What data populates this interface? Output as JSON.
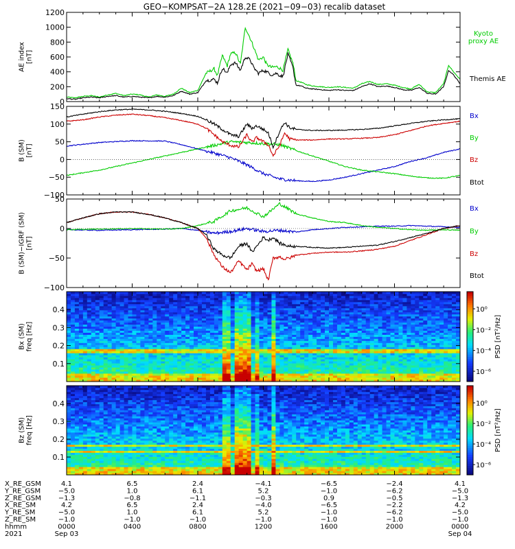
{
  "chart_data": [
    {
      "type": "line",
      "panel": "ae",
      "title": "GEO−KOMPSAT−2A 128.2E (2021−09−03) recalib dataset",
      "ylabel": "AE index\n[nT]",
      "ylim": [
        0,
        1200
      ],
      "yticks": [
        0,
        200,
        400,
        600,
        800,
        1000,
        1200
      ],
      "xlim": [
        0,
        24
      ],
      "series": [
        {
          "name": "Kyoto\nproxy AE",
          "color": "#00cc00",
          "x": [
            0,
            0.5,
            1,
            1.5,
            2,
            2.5,
            3,
            3.5,
            4,
            4.5,
            5,
            5.5,
            6,
            6.5,
            7,
            7.5,
            8,
            8.5,
            9,
            9.2,
            9.5,
            9.8,
            10,
            10.3,
            10.6,
            10.9,
            11.2,
            11.4,
            11.7,
            12,
            12.2,
            12.5,
            12.8,
            13,
            13.2,
            13.5,
            13.8,
            14,
            14.3,
            14.6,
            15,
            15.5,
            16,
            16.5,
            17,
            17.5,
            18,
            18.5,
            19,
            19.5,
            20,
            20.5,
            21,
            21.5,
            22,
            22.5,
            23,
            23.3,
            23.6,
            24
          ],
          "y": [
            60,
            50,
            70,
            80,
            60,
            90,
            110,
            80,
            100,
            90,
            60,
            90,
            70,
            100,
            180,
            120,
            150,
            380,
            440,
            350,
            620,
            480,
            640,
            660,
            500,
            1000,
            850,
            740,
            560,
            600,
            500,
            460,
            470,
            450,
            420,
            700,
            520,
            280,
            260,
            230,
            210,
            200,
            190,
            200,
            190,
            180,
            240,
            270,
            230,
            240,
            220,
            190,
            170,
            230,
            130,
            120,
            240,
            490,
            400,
            300
          ]
        },
        {
          "name": "Themis AE",
          "color": "#000000",
          "x": [
            0,
            0.5,
            1,
            1.5,
            2,
            2.5,
            3,
            3.5,
            4,
            4.5,
            5,
            5.5,
            6,
            6.5,
            7,
            7.5,
            8,
            8.5,
            9,
            9.2,
            9.5,
            9.8,
            10,
            10.3,
            10.6,
            10.9,
            11.2,
            11.4,
            11.7,
            12,
            12.2,
            12.5,
            12.8,
            13,
            13.2,
            13.5,
            13.8,
            14,
            14.3,
            14.6,
            15,
            15.5,
            16,
            16.5,
            17,
            17.5,
            18,
            18.5,
            19,
            19.5,
            20,
            20.5,
            21,
            21.5,
            22,
            22.5,
            23,
            23.3,
            23.6,
            24
          ],
          "y": [
            40,
            30,
            50,
            60,
            50,
            70,
            80,
            60,
            70,
            60,
            50,
            70,
            60,
            80,
            140,
            100,
            120,
            280,
            300,
            250,
            450,
            380,
            500,
            520,
            420,
            600,
            560,
            460,
            380,
            420,
            400,
            360,
            380,
            350,
            340,
            640,
            460,
            220,
            210,
            180,
            170,
            160,
            150,
            160,
            150,
            150,
            200,
            240,
            200,
            210,
            190,
            160,
            150,
            190,
            110,
            100,
            200,
            420,
            360,
            240
          ]
        }
      ]
    },
    {
      "type": "line",
      "panel": "bsm",
      "ylabel": "B (SM)\n[nT]",
      "ylim": [
        -100,
        150
      ],
      "yticks": [
        -100,
        -50,
        0,
        50,
        100,
        150
      ],
      "xlim": [
        0,
        24
      ],
      "series": [
        {
          "name": "Bx",
          "color": "#0000cc",
          "x": [
            0,
            2,
            4,
            6,
            7,
            8,
            9,
            10,
            11,
            12,
            13,
            14,
            15,
            16,
            17,
            18,
            19,
            20,
            21,
            22,
            23,
            24
          ],
          "y": [
            38,
            48,
            53,
            52,
            42,
            30,
            18,
            5,
            -15,
            -40,
            -55,
            -60,
            -62,
            -58,
            -50,
            -40,
            -30,
            -20,
            -5,
            5,
            20,
            30
          ]
        },
        {
          "name": "By",
          "color": "#00cc00",
          "x": [
            0,
            2,
            4,
            6,
            8,
            9,
            10,
            11,
            12,
            13,
            14,
            15,
            16,
            17,
            18,
            19,
            20,
            21,
            22,
            23,
            24
          ],
          "y": [
            -45,
            -30,
            -10,
            10,
            30,
            40,
            50,
            48,
            45,
            42,
            25,
            10,
            -5,
            -20,
            -30,
            -35,
            -40,
            -47,
            -52,
            -53,
            -45
          ]
        },
        {
          "name": "Bz",
          "color": "#cc0000",
          "x": [
            0,
            1,
            2,
            3,
            4,
            5,
            6,
            7,
            8,
            8.5,
            9,
            9.5,
            10,
            10.5,
            11,
            11.3,
            11.6,
            12,
            12.3,
            12.6,
            13,
            13.3,
            13.6,
            14,
            15,
            16,
            17,
            18,
            19,
            20,
            21,
            22,
            23,
            24
          ],
          "y": [
            108,
            112,
            120,
            125,
            128,
            124,
            118,
            110,
            100,
            88,
            70,
            50,
            40,
            35,
            70,
            48,
            62,
            50,
            42,
            10,
            40,
            75,
            58,
            55,
            55,
            58,
            58,
            60,
            62,
            70,
            82,
            95,
            102,
            108
          ]
        },
        {
          "name": "Btot",
          "color": "#000000",
          "x": [
            0,
            1,
            2,
            3,
            4,
            5,
            6,
            7,
            8,
            8.5,
            9,
            9.5,
            10,
            10.5,
            11,
            11.3,
            11.6,
            12,
            12.3,
            12.6,
            13,
            13.3,
            13.6,
            14,
            15,
            16,
            17,
            18,
            19,
            20,
            21,
            22,
            23,
            24
          ],
          "y": [
            120,
            128,
            135,
            140,
            142,
            140,
            136,
            130,
            122,
            112,
            100,
            85,
            70,
            65,
            100,
            88,
            95,
            85,
            75,
            35,
            80,
            105,
            90,
            85,
            82,
            82,
            83,
            85,
            88,
            95,
            102,
            108,
            112,
            115
          ]
        }
      ]
    },
    {
      "type": "line",
      "panel": "bigrf",
      "ylabel": "B (SM)−IGRF (SM)\n[nT]",
      "ylim": [
        -100,
        50
      ],
      "yticks": [
        -100,
        -50,
        0,
        50
      ],
      "xlim": [
        0,
        24
      ],
      "series": [
        {
          "name": "Bx",
          "color": "#0000cc",
          "x": [
            0,
            2,
            4,
            6,
            7,
            8,
            9,
            10,
            11,
            12,
            13,
            14,
            15,
            16,
            17,
            18,
            19,
            20,
            21,
            22,
            23,
            24
          ],
          "y": [
            -2,
            -3,
            -2,
            -1,
            0,
            -3,
            -8,
            -5,
            0,
            -5,
            -3,
            -6,
            -2,
            0,
            2,
            3,
            4,
            4,
            5,
            4,
            3,
            2
          ]
        },
        {
          "name": "By",
          "color": "#00cc00",
          "x": [
            0,
            2,
            4,
            6,
            7,
            8,
            9,
            10,
            11,
            12,
            13,
            14,
            15,
            16,
            17,
            18,
            19,
            20,
            21,
            22,
            23,
            24
          ],
          "y": [
            -2,
            -1,
            0,
            -1,
            0,
            5,
            12,
            30,
            35,
            20,
            42,
            25,
            18,
            12,
            10,
            5,
            2,
            0,
            -2,
            -3,
            -2,
            -3
          ]
        },
        {
          "name": "Bz",
          "color": "#cc0000",
          "x": [
            0,
            1,
            2,
            3,
            4,
            5,
            6,
            7,
            8,
            8.5,
            9,
            9.5,
            10,
            10.5,
            11,
            11.3,
            11.6,
            12,
            12.3,
            12.6,
            13,
            13.3,
            13.6,
            14,
            15,
            16,
            17,
            18,
            19,
            20,
            21,
            22,
            23,
            24
          ],
          "y": [
            10,
            18,
            25,
            28,
            28,
            24,
            18,
            10,
            0,
            -15,
            -45,
            -65,
            -75,
            -55,
            -70,
            -60,
            -72,
            -68,
            -88,
            -50,
            -48,
            -52,
            -50,
            -45,
            -42,
            -40,
            -40,
            -38,
            -35,
            -30,
            -20,
            -10,
            0,
            5
          ]
        },
        {
          "name": "Btot",
          "color": "#000000",
          "x": [
            0,
            1,
            2,
            3,
            4,
            5,
            6,
            7,
            8,
            8.5,
            9,
            9.5,
            10,
            10.5,
            11,
            11.3,
            11.6,
            12,
            12.3,
            12.6,
            13,
            13.3,
            13.6,
            14,
            15,
            16,
            17,
            18,
            19,
            20,
            21,
            22,
            23,
            24
          ],
          "y": [
            10,
            18,
            25,
            28,
            28,
            24,
            18,
            10,
            0,
            -10,
            -35,
            -45,
            -50,
            -30,
            -25,
            -40,
            -30,
            -15,
            -20,
            -15,
            -25,
            -28,
            -30,
            -30,
            -32,
            -33,
            -32,
            -30,
            -28,
            -22,
            -15,
            -8,
            0,
            5
          ]
        }
      ]
    },
    {
      "type": "heatmap",
      "panel": "bx-spec",
      "ylabel": "Bx (SM)\nfreq [Hz]",
      "yticks": [
        0.1,
        0.2,
        0.3,
        0.4
      ],
      "ylim": [
        0,
        0.5
      ],
      "xlim": [
        0,
        24
      ],
      "colorbar_label": "PSD [nT²/Hz]",
      "colorbar_ticks": [
        "10⁰",
        "10⁻²",
        "10⁻⁴",
        "10⁻⁶"
      ],
      "bands_hz": [
        0.175,
        0.165
      ],
      "active_hours": [
        [
          9.4,
          10.0,
          0.9
        ],
        [
          10.2,
          11.2,
          1.0
        ],
        [
          11.4,
          11.7,
          0.6
        ],
        [
          12.4,
          12.8,
          1.0
        ]
      ]
    },
    {
      "type": "heatmap",
      "panel": "bz-spec",
      "ylabel": "Bz (SM)\nfreq [Hz]",
      "yticks": [
        0.1,
        0.2,
        0.3,
        0.4
      ],
      "ylim": [
        0,
        0.5
      ],
      "xlim": [
        0,
        24
      ],
      "colorbar_label": "PSD [nT²/Hz]",
      "colorbar_ticks": [
        "10⁰",
        "10⁻²",
        "10⁻⁴",
        "10⁻⁶"
      ],
      "bands_hz": [
        0.17,
        0.135
      ],
      "active_hours": [
        [
          9.4,
          10.0,
          0.8
        ],
        [
          10.2,
          11.2,
          1.0
        ],
        [
          11.4,
          11.7,
          0.6
        ],
        [
          12.4,
          12.8,
          1.0
        ]
      ]
    }
  ],
  "ephemeris": {
    "labels": [
      "X_RE_GSM",
      "Y_RE_GSM",
      "Z_RE_GSM",
      "X_RE_SM",
      "Y_RE_SM",
      "Z_RE_SM",
      "hhmm",
      "2021"
    ],
    "columns": [
      {
        "hour": 0,
        "values": [
          "4.1",
          "−5.0",
          "−1.3",
          "4.2",
          "−5.0",
          "−1.0",
          "0000",
          "Sep 03"
        ]
      },
      {
        "hour": 4,
        "values": [
          "6.5",
          "1.0",
          "−0.8",
          "6.5",
          "1.0",
          "−1.0",
          "0400",
          ""
        ]
      },
      {
        "hour": 8,
        "values": [
          "2.4",
          "6.1",
          "−1.1",
          "2.4",
          "6.1",
          "−1.0",
          "0800",
          ""
        ]
      },
      {
        "hour": 12,
        "values": [
          "−4.1",
          "5.2",
          "−0.3",
          "−4.0",
          "5.2",
          "−1.0",
          "1200",
          ""
        ]
      },
      {
        "hour": 16,
        "values": [
          "−6.5",
          "−1.0",
          "0.9",
          "−6.5",
          "−1.0",
          "−1.0",
          "1600",
          ""
        ]
      },
      {
        "hour": 20,
        "values": [
          "−2.4",
          "−6.2",
          "−0.5",
          "−2.2",
          "−6.2",
          "−1.0",
          "2000",
          ""
        ]
      },
      {
        "hour": 24,
        "values": [
          "4.1",
          "−5.0",
          "−1.3",
          "4.2",
          "−5.0",
          "−1.0",
          "0000",
          "Sep 04"
        ]
      }
    ]
  }
}
